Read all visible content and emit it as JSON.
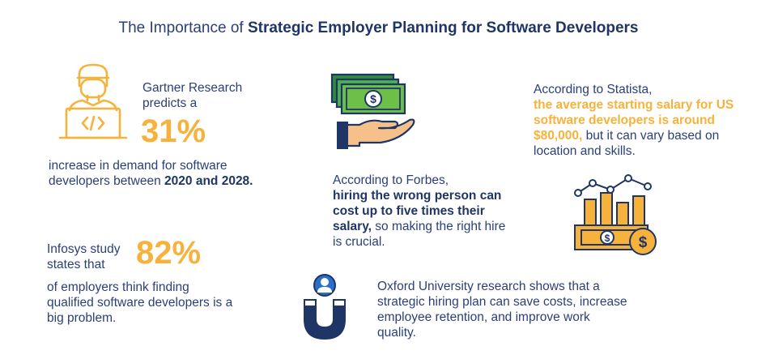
{
  "title": {
    "prefix": "The Importance of ",
    "emphasis": "Strategic Employer Planning for Software Developers"
  },
  "gartner": {
    "line1": "Gartner Research",
    "line2": "predicts a",
    "stat": "31%",
    "desc_prefix": "increase in demand for software developers between ",
    "desc_years": "2020 and 2028."
  },
  "forbes": {
    "intro": "According to Forbes,",
    "emphasis": "hiring the wrong person can cost up to five times their salary,",
    "suffix": " so making the right hire is crucial."
  },
  "statista": {
    "intro": "According to Statista,",
    "emphasis": "the average starting salary for US software developers is around $80,000,",
    "suffix": " but it can vary based on location and skills."
  },
  "infosys": {
    "line1": "Infosys study",
    "line2": "states that",
    "stat": "82%",
    "desc": "of employers think finding qualified software developers is a big problem."
  },
  "oxford": {
    "text": "Oxford University research shows that a strategic hiring plan can save costs, increase employee retention, and improve work quality."
  },
  "icons": {
    "developer": "developer-laptop-icon",
    "money": "money-hand-icon",
    "salary": "salary-chart-icon",
    "magnet": "magnet-user-icon"
  },
  "colors": {
    "navy": "#1f3566",
    "orange": "#f7b23b",
    "green": "#2e8b3a",
    "blue": "#2a6fc9"
  }
}
